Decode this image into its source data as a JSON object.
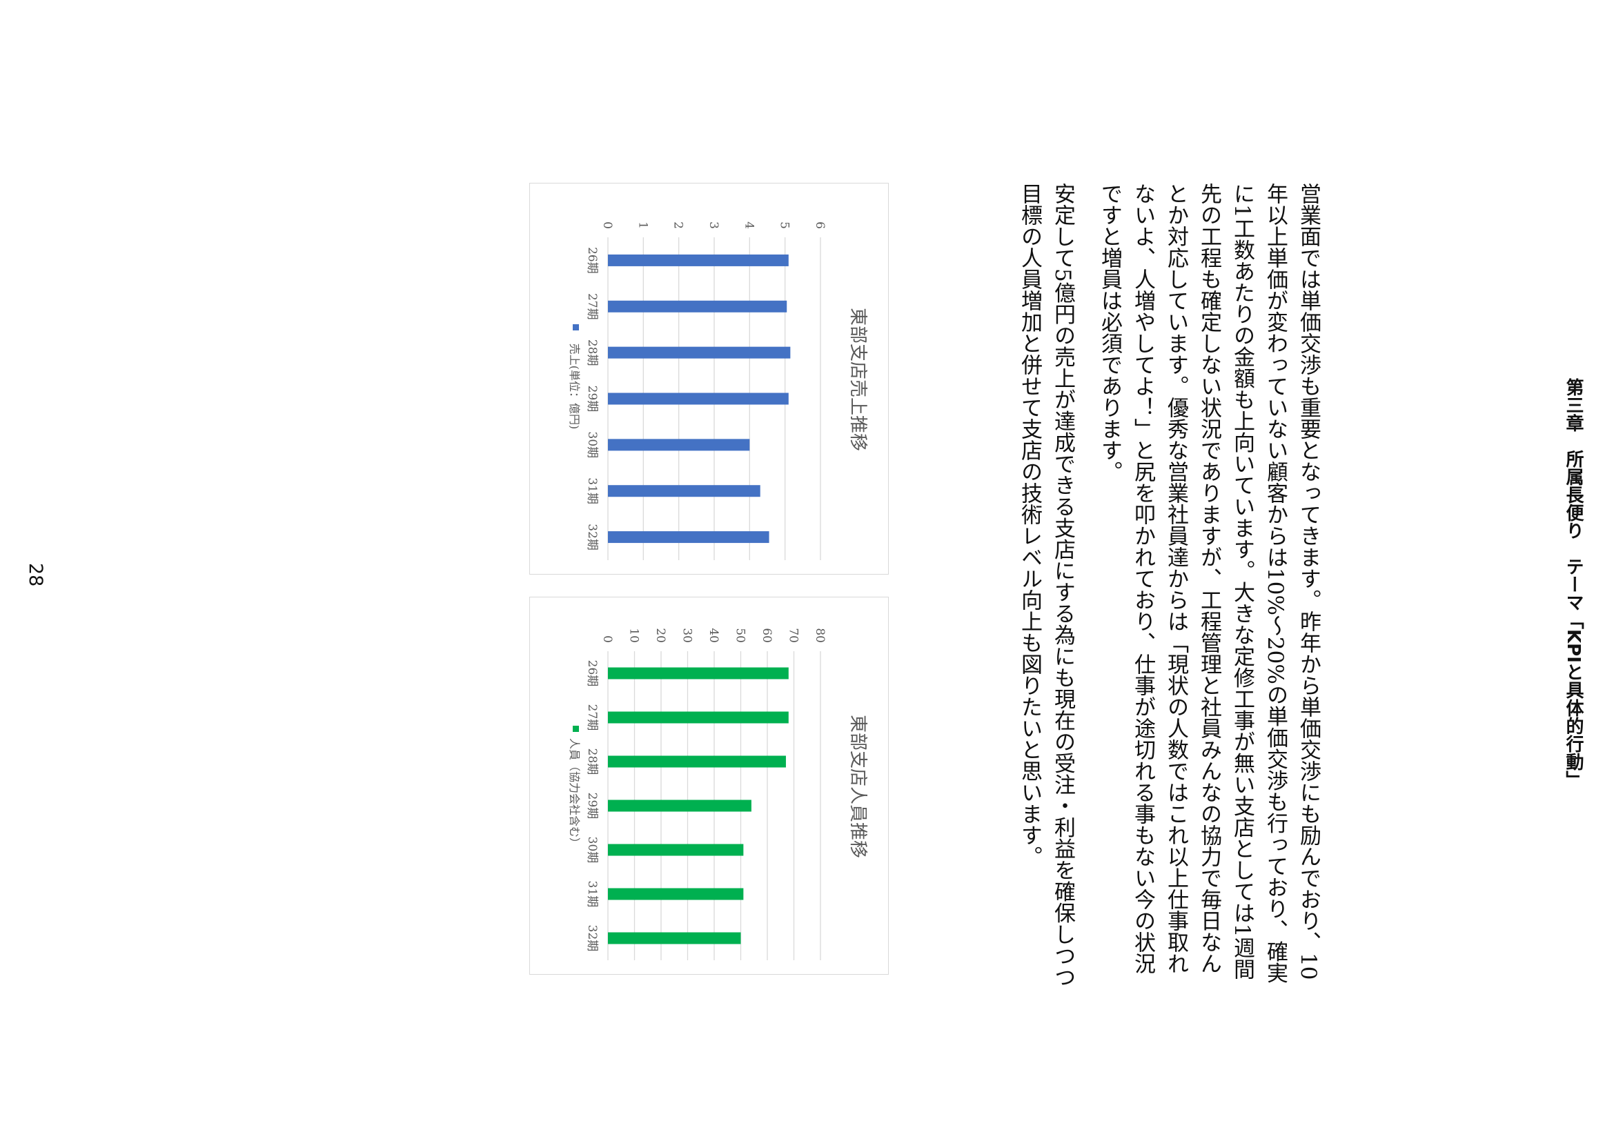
{
  "heading": "第三章　所属長便り　テーマ「KPIと具体的行動」",
  "paragraphs": [
    "営業面では単価交渉も重要となってきます。昨年から単価交渉にも励んでおり、10年以上単価が変わっていない顧客からは10%〜20%の単価交渉も行っており、確実に1工数あたりの金額も上向いています。大きな定修工事が無い支店としては1週間先の工程も確定しない状況でありますが、工程管理と社員みんなの協力で毎日なんとか対応しています。優秀な営業社員達からは「現状の人数ではこれ以上仕事取れないよ、人増やしてよ！」と尻を叩かれており、仕事が途切れる事もない今の状況ですと増員は必須であります。",
    "安定して5億円の売上が達成できる支店にする為にも現在の受注・利益を確保しつつ目標の人員増加と併せて支店の技術レベル向上も図りたいと思います。"
  ],
  "page_number": "28",
  "chart_data": [
    {
      "type": "bar",
      "title": "東部支店売上推移",
      "categories": [
        "26期",
        "27期",
        "28期",
        "29期",
        "30期",
        "31期",
        "32期"
      ],
      "series": [
        {
          "name": "売上(単位：億円)",
          "values": [
            5.1,
            5.05,
            5.15,
            5.1,
            4.0,
            4.3,
            4.55
          ]
        }
      ],
      "ylim": [
        0,
        6
      ],
      "yticks": [
        "0",
        "1",
        "2",
        "3",
        "4",
        "5",
        "6"
      ],
      "legend": "bottom",
      "grid": true,
      "color": "#4472C4"
    },
    {
      "type": "bar",
      "title": "東部支店人員推移",
      "categories": [
        "26期",
        "27期",
        "28期",
        "29期",
        "30期",
        "31期",
        "32期"
      ],
      "series": [
        {
          "name": "人員（協力会社含む）",
          "values": [
            68,
            68,
            67,
            54,
            51,
            51,
            50
          ]
        }
      ],
      "ylim": [
        0,
        80
      ],
      "yticks": [
        "0",
        "10",
        "20",
        "30",
        "40",
        "50",
        "60",
        "70",
        "80"
      ],
      "legend": "bottom",
      "grid": true,
      "color": "#00B050"
    }
  ]
}
